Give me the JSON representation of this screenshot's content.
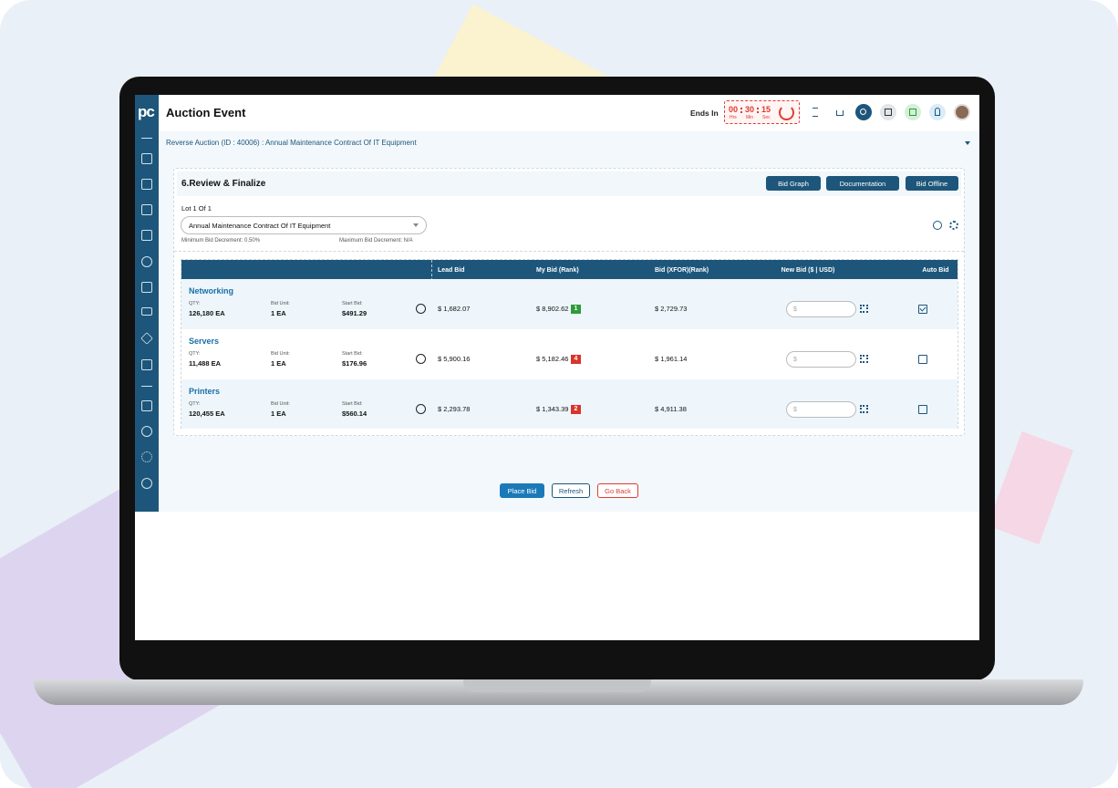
{
  "header": {
    "logo": "pc",
    "title": "Auction Event",
    "timer": {
      "label": "Ends In",
      "hours": "00",
      "minutes": "30",
      "seconds": "15",
      "hours_unit": "Hrs",
      "minutes_unit": "Min",
      "seconds_unit": "Sec"
    }
  },
  "breadcrumb": "Reverse Auction (ID : 40006) : Annual Maintenance Contract Of IT Equipment",
  "section": {
    "title": "6.Review & Finalize",
    "buttons": [
      "Bid Graph",
      "Documentation",
      "Bid Offline"
    ],
    "lot": "Lot 1 Of 1",
    "lot_select": "Annual Maintenance Contract Of IT Equipment",
    "min_decrement": "Minimum Bid Decrement: 0.50%",
    "max_decrement": "Maximum Bid Decrement: N/A"
  },
  "table": {
    "columns": [
      "Lead Bid",
      "My Bid (Rank)",
      "Bid (XFOR)(Rank)",
      "New Bid ($ | USD)",
      "Auto Bid"
    ],
    "input_placeholder": "$",
    "qty_label": "QTY:",
    "unit_label": "Bid Unit:",
    "start_label": "Start Bid:",
    "rows": [
      {
        "name": "Networking",
        "qty": "126,180 EA",
        "unit": "1 EA",
        "start_bid": "$491.29",
        "lead_bid": "$ 1,682.07",
        "my_bid": "$ 8,902.62",
        "rank": 1,
        "rank_color": "#2e9b3a",
        "xfor_bid": "$ 2,729.73",
        "auto_bid": true
      },
      {
        "name": "Servers",
        "qty": "11,488 EA",
        "unit": "1 EA",
        "start_bid": "$176.96",
        "lead_bid": "$ 5,900.16",
        "my_bid": "$ 5,182.46",
        "rank": 4,
        "rank_color": "#d9342b",
        "xfor_bid": "$ 1,961.14",
        "auto_bid": false
      },
      {
        "name": "Printers",
        "qty": "120,455 EA",
        "unit": "1 EA",
        "start_bid": "$560.14",
        "lead_bid": "$ 2,293.78",
        "my_bid": "$ 1,343.39",
        "rank": 2,
        "rank_color": "#d9342b",
        "xfor_bid": "$ 4,911.38",
        "auto_bid": false
      }
    ]
  },
  "footer": {
    "buttons": [
      "Place Bid",
      "Refresh",
      "Go Back"
    ]
  }
}
